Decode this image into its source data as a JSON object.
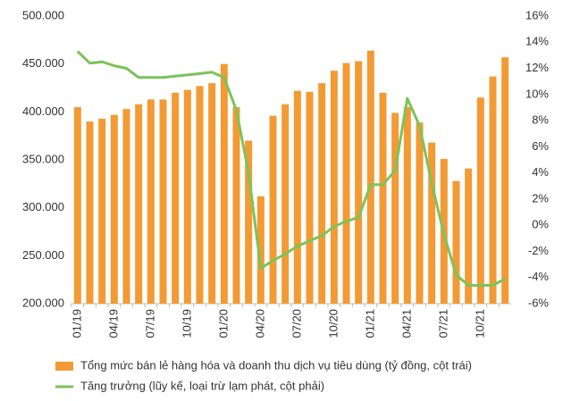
{
  "chart_data": {
    "type": "bar-line",
    "categories": [
      "01/19",
      null,
      null,
      "04/19",
      null,
      null,
      "07/19",
      null,
      null,
      "10/19",
      null,
      null,
      "01/20",
      null,
      null,
      "04/20",
      null,
      null,
      "07/20",
      null,
      null,
      "10/20",
      null,
      null,
      "01/21",
      null,
      null,
      "04/21",
      null,
      null,
      "07/21",
      null,
      null,
      "10/21",
      null,
      null
    ],
    "series": [
      {
        "name": "Tổng mức bán lẻ hàng hóa và doanh thu dịch vụ tiêu dùng (tỷ đồng, cột trái)",
        "color": "#f39a34",
        "type": "bar",
        "values": [
          405000,
          390000,
          393000,
          397000,
          403000,
          408000,
          413000,
          413000,
          420000,
          423000,
          427000,
          430000,
          450000,
          405000,
          370000,
          312000,
          396000,
          408000,
          422000,
          421000,
          430000,
          443000,
          451000,
          453000,
          464000,
          420000,
          399000,
          405000,
          389000,
          368000,
          351000,
          328000,
          341000,
          415000,
          437000,
          457000
        ]
      },
      {
        "name": "Tăng trưởng (lũy kế, loại trừ lạm phát, cột phải)",
        "color": "#7cc35b",
        "type": "line",
        "axis": "y2",
        "values": [
          13.3,
          12.4,
          12.5,
          12.2,
          12.0,
          11.3,
          11.3,
          11.3,
          11.4,
          11.5,
          11.6,
          11.7,
          11.3,
          8.8,
          4.0,
          -3.3,
          -2.7,
          -2.2,
          -1.6,
          -1.2,
          -0.8,
          -0.1,
          0.3,
          0.6,
          3.1,
          3.1,
          4.2,
          9.7,
          7.6,
          3.2,
          -0.7,
          -3.8,
          -4.6,
          -4.6,
          -4.6,
          -4.1
        ]
      }
    ],
    "ylim": [
      200000,
      500000
    ],
    "yticks": [
      {
        "value": 200000,
        "label": "200.000"
      },
      {
        "value": 250000,
        "label": "250.000"
      },
      {
        "value": 300000,
        "label": "300.000"
      },
      {
        "value": 350000,
        "label": "350.000"
      },
      {
        "value": 400000,
        "label": "400.000"
      },
      {
        "value": 450000,
        "label": "450.000"
      },
      {
        "value": 500000,
        "label": "500.000"
      }
    ],
    "y2lim": [
      -6,
      16
    ],
    "y2ticks": [
      {
        "value": -6,
        "label": "-6%"
      },
      {
        "value": -4,
        "label": "-4%"
      },
      {
        "value": -2,
        "label": "-2%"
      },
      {
        "value": 0,
        "label": "0%"
      },
      {
        "value": 2,
        "label": "2%"
      },
      {
        "value": 4,
        "label": "4%"
      },
      {
        "value": 6,
        "label": "6%"
      },
      {
        "value": 8,
        "label": "8%"
      },
      {
        "value": 10,
        "label": "10%"
      },
      {
        "value": 12,
        "label": "12%"
      },
      {
        "value": 14,
        "label": "14%"
      },
      {
        "value": 16,
        "label": "16%"
      }
    ]
  }
}
